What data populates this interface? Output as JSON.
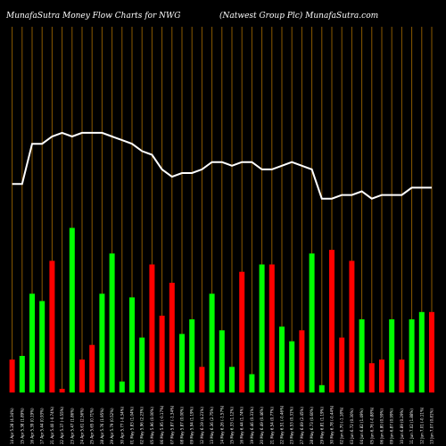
{
  "header": {
    "title_left": "MunafaSutra  Money Flow  Charts for NWG",
    "title_right": "(Natwest Group Plc) MunafaSutra.com"
  },
  "chart_data": {
    "type": "bar",
    "title": "MunafaSutra  Money Flow  Charts for NWG",
    "subtitle": "(Natwest Group Plc) MunafaSutra.com",
    "background": "#000000",
    "colors": {
      "up": "#00ff00",
      "down": "#ff0000",
      "line": "#ffffff",
      "grid": "#8b5a00"
    },
    "categories": [
      "Fri 13 Jun 2025",
      "Thu 12 Jun 2025",
      "Wed 11 Jun 2025",
      "Tue 10 Jun 2025",
      "Mon 09 Jun 2025",
      "Fri 06 Jun 2025",
      "Thu 05 Jun 2025",
      "Wed 04 Jun 2025",
      "Tue 03 Jun 2025",
      "Mon 02 Jun 2025",
      "Fri 30 May 2025",
      "Thu 29 May 2025",
      "Wed 28 May 2025",
      "Tue 27 May 2025",
      "Fri 23 May 2025",
      "Thu 22 May 2025",
      "Wed 21 May 2025",
      "Tue 20 May 2025",
      "Mon 19 May 2025",
      "Fri 16 May 2025",
      "Thu 15 May 2025",
      "Wed 14 May 2025",
      "Tue 13 May 2025",
      "Mon 12 May 2025",
      "Fri 09 May 2025",
      "Thu 08 May 2025",
      "Wed 07 May 2025",
      "Tue 06 May 2025",
      "Mon 05 May 2025",
      "Fri 02 May 2025",
      "Thu 01 May 2025",
      "Wed 30 Apr 2025",
      "Tue 29 Apr 2025",
      "Mon 28 Apr 2025",
      "Fri 25 Apr 2025",
      "Thu 24 Apr 2025",
      "Wed 23 Apr 2025",
      "Tue 22 Apr 2025",
      "Mon 21 Apr 2025",
      "Thu 17 Apr 2025",
      "Wed 16 Apr 2025",
      "Tue 15 Apr 2025",
      "Mon 14 Apr 2025"
    ],
    "tick_labels": [
      "13 Jun 7.07 (0.81%)",
      "12 Jun 7.01 (-0.11%)",
      "11 Jun 7.02 (1.88%)",
      "10 Jun 6.89 (0.29%)",
      "09 Jun 6.87 (0.99%)",
      "06 Jun 6.80 (0.59%)",
      "05 Jun 6.76 (-0.88%)",
      "04 Jun 6.82 (1.49%)",
      "03 Jun 6.72 (0.30%)",
      "02 Jun 6.70 (-1.18%)",
      "30 May 6.78 (-0.44%)",
      "29 May 6.81 (1.19%)",
      "28 May 6.73 (0.60%)",
      "27 May 6.69 (2.45%)",
      "23 May 6.53 (0.31%)",
      "22 May 6.51 (-0.46%)",
      "21 May 6.54 (0.77%)",
      "20 May 6.49 (0.46%)",
      "19 May 6.46 (0.31%)",
      "16 May 6.44 (1.74%)",
      "15 May 6.33 (1.12%)",
      "14 May 6.26 (-1.57%)",
      "13 May 6.36 (2.75%)",
      "12 May 6.19 (4.21%)",
      "09 May 5.94 (1.19%)",
      "08 May 5.87 (0.00%)",
      "07 May 5.87 (-1.34%)",
      "06 May 5.95 (-0.17%)",
      "05 May 5.96 (0.00%)",
      "02 May 5.96 (2.23%)",
      "01 May 5.83 (1.04%)",
      "30 Apr 5.77 (-0.34%)",
      "29 Apr 5.79 (0.52%)",
      "28 Apr 5.76 (1.95%)",
      "25 Apr 5.65 (0.71%)",
      "24 Apr 5.61 (2.56%)",
      "23 Apr 5.47 (1.86%)",
      "22 Apr 5.37 (-0.55%)",
      "21 Apr 5.40 (-0.74%)",
      "17 Apr 5.44 (0.93%)",
      "16 Apr 5.39 (0.19%)",
      "15 Apr 5.38 (1.89%)",
      "14 Apr 5.28 (4.34%)"
    ],
    "series": [
      {
        "values": [
          22,
          22,
          20,
          9,
          20,
          9,
          8,
          20,
          36,
          15,
          39,
          2,
          38,
          17,
          14,
          18,
          35,
          35,
          5,
          33,
          7,
          17,
          27,
          7,
          20,
          16,
          30,
          21,
          35,
          15,
          26,
          3,
          38,
          27,
          13,
          9,
          45,
          1,
          36,
          25,
          27,
          10,
          9
        ],
        "up": [
          false,
          true,
          true,
          false,
          true,
          false,
          false,
          true,
          false,
          false,
          false,
          true,
          true,
          false,
          true,
          true,
          false,
          true,
          true,
          false,
          true,
          true,
          true,
          false,
          true,
          true,
          false,
          false,
          false,
          true,
          true,
          true,
          true,
          true,
          false,
          false,
          true,
          false,
          false,
          true,
          true,
          true,
          false
        ]
      }
    ],
    "line": [
      56,
      56,
      56,
      54,
      54,
      54,
      53,
      55,
      54,
      54,
      53,
      53,
      61,
      62,
      63,
      62,
      61,
      61,
      63,
      63,
      62,
      63,
      63,
      61,
      60,
      60,
      59,
      61,
      65,
      66,
      68,
      69,
      70,
      71,
      71,
      71,
      70,
      71,
      70,
      68,
      68,
      57,
      57
    ],
    "ylim": [
      0,
      100
    ],
    "grid": true
  }
}
